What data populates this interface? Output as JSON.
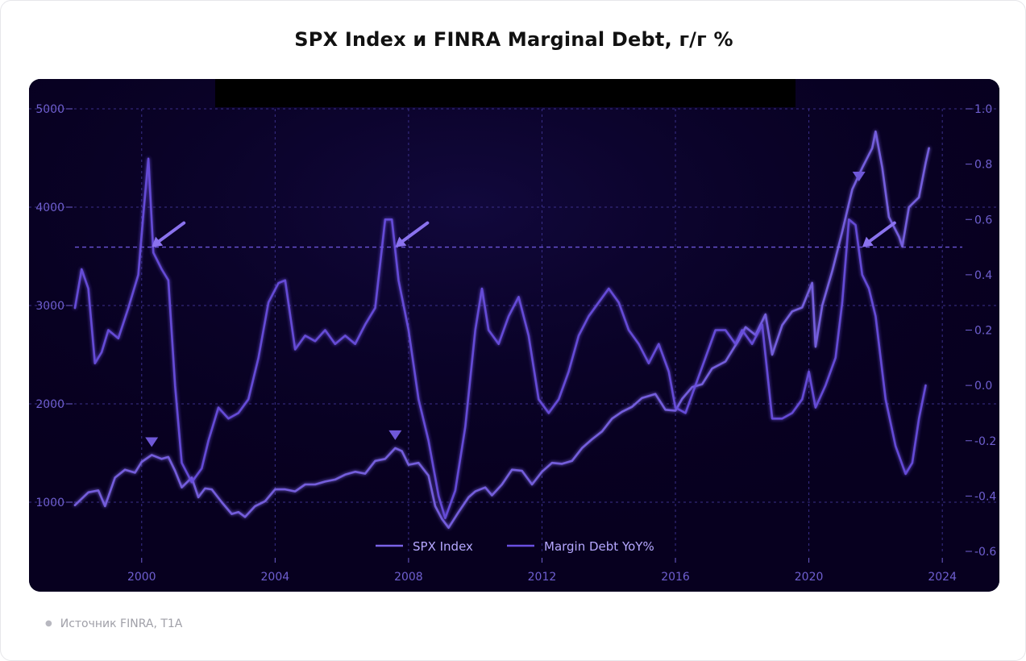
{
  "title": "SPX Index и FINRA Marginal Debt, г/г %",
  "source": "Источник FINRA, T1A",
  "colors": {
    "background": "#07001f",
    "spx": "#7a63e6",
    "margin": "#6a4fe0",
    "grid": "#3a2f8a",
    "text": "#6f5fd0",
    "black_band": "#000000"
  },
  "chart_data": {
    "type": "line",
    "x_axis": {
      "min": 1998.0,
      "max": 2024.6,
      "ticks": [
        "2000",
        "2004",
        "2008",
        "2012",
        "2016",
        "2020",
        "2024"
      ]
    },
    "y_left": {
      "min": 500,
      "max": 5000,
      "ticks": [
        "1000",
        "2000",
        "3000",
        "4000",
        "5000"
      ]
    },
    "y_right": {
      "min": -0.6,
      "max": 1.0,
      "ticks": [
        "-0.6",
        "-0.4",
        "-0.2",
        "0.0",
        "0.2",
        "0.4",
        "0.6",
        "0.8",
        "1.0"
      ]
    },
    "threshold": {
      "axis": "right",
      "value": 0.5
    },
    "legend": {
      "position": "bottom-center",
      "entries": [
        "SPX Index",
        "Margin Debt YoY%"
      ]
    },
    "series": [
      {
        "name": "SPX Index",
        "axis": "left",
        "points": [
          [
            1998.0,
            970
          ],
          [
            1998.4,
            1100
          ],
          [
            1998.7,
            1120
          ],
          [
            1998.9,
            960
          ],
          [
            1999.2,
            1250
          ],
          [
            1999.5,
            1330
          ],
          [
            1999.8,
            1300
          ],
          [
            2000.0,
            1410
          ],
          [
            2000.3,
            1480
          ],
          [
            2000.6,
            1440
          ],
          [
            2000.8,
            1460
          ],
          [
            2001.0,
            1320
          ],
          [
            2001.2,
            1150
          ],
          [
            2001.5,
            1250
          ],
          [
            2001.7,
            1050
          ],
          [
            2001.9,
            1140
          ],
          [
            2002.1,
            1130
          ],
          [
            2002.4,
            1000
          ],
          [
            2002.7,
            880
          ],
          [
            2002.9,
            900
          ],
          [
            2003.1,
            850
          ],
          [
            2003.4,
            960
          ],
          [
            2003.7,
            1010
          ],
          [
            2004.0,
            1130
          ],
          [
            2004.3,
            1130
          ],
          [
            2004.6,
            1110
          ],
          [
            2004.9,
            1180
          ],
          [
            2005.2,
            1180
          ],
          [
            2005.5,
            1210
          ],
          [
            2005.8,
            1230
          ],
          [
            2006.1,
            1280
          ],
          [
            2006.4,
            1310
          ],
          [
            2006.7,
            1290
          ],
          [
            2007.0,
            1420
          ],
          [
            2007.3,
            1440
          ],
          [
            2007.6,
            1550
          ],
          [
            2007.8,
            1520
          ],
          [
            2008.0,
            1380
          ],
          [
            2008.3,
            1400
          ],
          [
            2008.6,
            1270
          ],
          [
            2008.8,
            960
          ],
          [
            2009.0,
            830
          ],
          [
            2009.2,
            740
          ],
          [
            2009.5,
            900
          ],
          [
            2009.8,
            1050
          ],
          [
            2010.0,
            1110
          ],
          [
            2010.3,
            1150
          ],
          [
            2010.5,
            1070
          ],
          [
            2010.8,
            1180
          ],
          [
            2011.1,
            1330
          ],
          [
            2011.4,
            1320
          ],
          [
            2011.7,
            1180
          ],
          [
            2012.0,
            1310
          ],
          [
            2012.3,
            1400
          ],
          [
            2012.6,
            1390
          ],
          [
            2012.9,
            1420
          ],
          [
            2013.2,
            1550
          ],
          [
            2013.5,
            1640
          ],
          [
            2013.8,
            1720
          ],
          [
            2014.1,
            1850
          ],
          [
            2014.4,
            1920
          ],
          [
            2014.7,
            1970
          ],
          [
            2015.0,
            2060
          ],
          [
            2015.4,
            2100
          ],
          [
            2015.7,
            1940
          ],
          [
            2016.0,
            1930
          ],
          [
            2016.2,
            2050
          ],
          [
            2016.5,
            2170
          ],
          [
            2016.8,
            2200
          ],
          [
            2017.1,
            2360
          ],
          [
            2017.5,
            2430
          ],
          [
            2017.9,
            2650
          ],
          [
            2018.1,
            2780
          ],
          [
            2018.4,
            2700
          ],
          [
            2018.7,
            2910
          ],
          [
            2018.9,
            2500
          ],
          [
            2019.2,
            2800
          ],
          [
            2019.5,
            2940
          ],
          [
            2019.8,
            2980
          ],
          [
            2020.1,
            3230
          ],
          [
            2020.2,
            2580
          ],
          [
            2020.4,
            3000
          ],
          [
            2020.7,
            3350
          ],
          [
            2021.0,
            3750
          ],
          [
            2021.3,
            4180
          ],
          [
            2021.6,
            4400
          ],
          [
            2021.9,
            4600
          ],
          [
            2022.0,
            4770
          ],
          [
            2022.2,
            4400
          ],
          [
            2022.4,
            3900
          ],
          [
            2022.7,
            3700
          ],
          [
            2022.8,
            3600
          ],
          [
            2023.0,
            4000
          ],
          [
            2023.3,
            4100
          ],
          [
            2023.5,
            4450
          ],
          [
            2023.6,
            4600
          ]
        ]
      },
      {
        "name": "Margin Debt YoY%",
        "axis": "right",
        "points": [
          [
            1998.0,
            0.28
          ],
          [
            1998.2,
            0.42
          ],
          [
            1998.4,
            0.35
          ],
          [
            1998.6,
            0.08
          ],
          [
            1998.8,
            0.12
          ],
          [
            1999.0,
            0.2
          ],
          [
            1999.3,
            0.17
          ],
          [
            1999.6,
            0.28
          ],
          [
            1999.9,
            0.4
          ],
          [
            2000.05,
            0.62
          ],
          [
            2000.2,
            0.82
          ],
          [
            2000.35,
            0.48
          ],
          [
            2000.6,
            0.42
          ],
          [
            2000.8,
            0.38
          ],
          [
            2001.0,
            0.0
          ],
          [
            2001.2,
            -0.28
          ],
          [
            2001.5,
            -0.35
          ],
          [
            2001.8,
            -0.3
          ],
          [
            2002.0,
            -0.2
          ],
          [
            2002.3,
            -0.08
          ],
          [
            2002.6,
            -0.12
          ],
          [
            2002.9,
            -0.1
          ],
          [
            2003.2,
            -0.05
          ],
          [
            2003.5,
            0.1
          ],
          [
            2003.8,
            0.3
          ],
          [
            2004.1,
            0.37
          ],
          [
            2004.3,
            0.38
          ],
          [
            2004.6,
            0.13
          ],
          [
            2004.9,
            0.18
          ],
          [
            2005.2,
            0.16
          ],
          [
            2005.5,
            0.2
          ],
          [
            2005.8,
            0.15
          ],
          [
            2006.1,
            0.18
          ],
          [
            2006.4,
            0.15
          ],
          [
            2006.7,
            0.22
          ],
          [
            2007.0,
            0.28
          ],
          [
            2007.3,
            0.6
          ],
          [
            2007.5,
            0.6
          ],
          [
            2007.7,
            0.38
          ],
          [
            2008.0,
            0.2
          ],
          [
            2008.3,
            -0.05
          ],
          [
            2008.6,
            -0.2
          ],
          [
            2008.9,
            -0.4
          ],
          [
            2009.1,
            -0.48
          ],
          [
            2009.4,
            -0.38
          ],
          [
            2009.7,
            -0.15
          ],
          [
            2010.0,
            0.2
          ],
          [
            2010.2,
            0.35
          ],
          [
            2010.4,
            0.2
          ],
          [
            2010.7,
            0.15
          ],
          [
            2011.0,
            0.25
          ],
          [
            2011.3,
            0.32
          ],
          [
            2011.6,
            0.18
          ],
          [
            2011.9,
            -0.05
          ],
          [
            2012.2,
            -0.1
          ],
          [
            2012.5,
            -0.05
          ],
          [
            2012.8,
            0.05
          ],
          [
            2013.1,
            0.18
          ],
          [
            2013.4,
            0.25
          ],
          [
            2013.7,
            0.3
          ],
          [
            2014.0,
            0.35
          ],
          [
            2014.3,
            0.3
          ],
          [
            2014.6,
            0.2
          ],
          [
            2014.9,
            0.15
          ],
          [
            2015.2,
            0.08
          ],
          [
            2015.5,
            0.15
          ],
          [
            2015.8,
            0.05
          ],
          [
            2016.0,
            -0.08
          ],
          [
            2016.3,
            -0.1
          ],
          [
            2016.6,
            0.0
          ],
          [
            2016.9,
            0.1
          ],
          [
            2017.2,
            0.2
          ],
          [
            2017.5,
            0.2
          ],
          [
            2017.8,
            0.15
          ],
          [
            2018.0,
            0.2
          ],
          [
            2018.3,
            0.15
          ],
          [
            2018.6,
            0.22
          ],
          [
            2018.9,
            -0.12
          ],
          [
            2019.2,
            -0.12
          ],
          [
            2019.5,
            -0.1
          ],
          [
            2019.8,
            -0.05
          ],
          [
            2020.0,
            0.05
          ],
          [
            2020.2,
            -0.08
          ],
          [
            2020.5,
            0.0
          ],
          [
            2020.8,
            0.1
          ],
          [
            2021.0,
            0.3
          ],
          [
            2021.2,
            0.6
          ],
          [
            2021.4,
            0.58
          ],
          [
            2021.6,
            0.4
          ],
          [
            2021.8,
            0.35
          ],
          [
            2022.0,
            0.25
          ],
          [
            2022.3,
            -0.05
          ],
          [
            2022.6,
            -0.22
          ],
          [
            2022.9,
            -0.32
          ],
          [
            2023.1,
            -0.28
          ],
          [
            2023.3,
            -0.12
          ],
          [
            2023.5,
            0.0
          ]
        ]
      }
    ],
    "annotations": [
      {
        "type": "arrow",
        "x": 2000.3,
        "axis": "right",
        "y": 0.5
      },
      {
        "type": "arrow",
        "x": 2007.6,
        "axis": "right",
        "y": 0.5
      },
      {
        "type": "arrow",
        "x": 2021.6,
        "axis": "right",
        "y": 0.5
      },
      {
        "type": "triangle",
        "x": 2000.3,
        "axis": "left",
        "y": 1480
      },
      {
        "type": "triangle",
        "x": 2007.6,
        "axis": "left",
        "y": 1550
      },
      {
        "type": "triangle",
        "x": 2021.5,
        "axis": "left",
        "y": 4180
      }
    ]
  }
}
